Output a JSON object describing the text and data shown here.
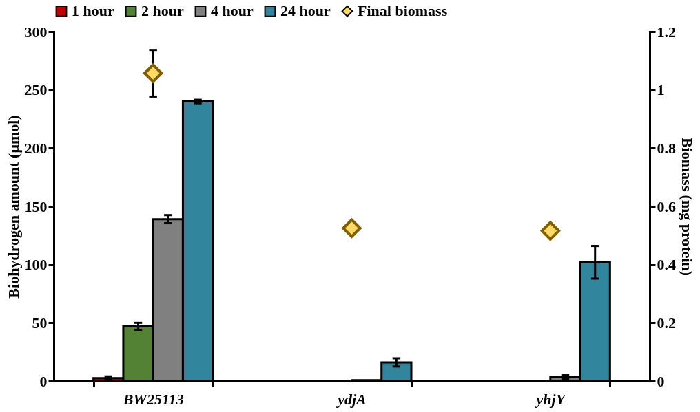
{
  "chart_data": {
    "type": "bar",
    "categories": [
      "BW25113",
      "ydjA",
      "yhjY"
    ],
    "ylabel": "Biohydrogen amount (μmol)",
    "y2label": "Biomass  (mg protein)",
    "ylim": [
      0,
      300
    ],
    "yticks": [
      0,
      50,
      100,
      150,
      200,
      250,
      300
    ],
    "y2lim": [
      0,
      1.2
    ],
    "y2ticks": [
      0,
      0.2,
      0.4,
      0.6,
      0.8,
      1,
      1.2
    ],
    "grid": false,
    "legend": "top",
    "series": [
      {
        "name": "1 hour",
        "color": "#c00000",
        "values": [
          2.5,
          null,
          null
        ],
        "errors": [
          1.5,
          null,
          null
        ]
      },
      {
        "name": "2 hour",
        "color": "#548235",
        "values": [
          47,
          null,
          null
        ],
        "errors": [
          3,
          null,
          null
        ]
      },
      {
        "name": "4 hour",
        "color": "#808080",
        "values": [
          139,
          0.8,
          3.5
        ],
        "errors": [
          3.5,
          null,
          1.5
        ]
      },
      {
        "name": "24 hour",
        "color": "#31859c",
        "values": [
          240,
          16,
          102
        ],
        "errors": [
          1.5,
          3.5,
          14
        ]
      },
      {
        "name": "Final biomass",
        "type": "scatter",
        "axis": "y2",
        "marker": "diamond",
        "color": "#ffd966",
        "values": [
          1.057,
          0.525,
          0.516
        ],
        "errors": [
          0.08,
          null,
          null
        ]
      }
    ]
  }
}
